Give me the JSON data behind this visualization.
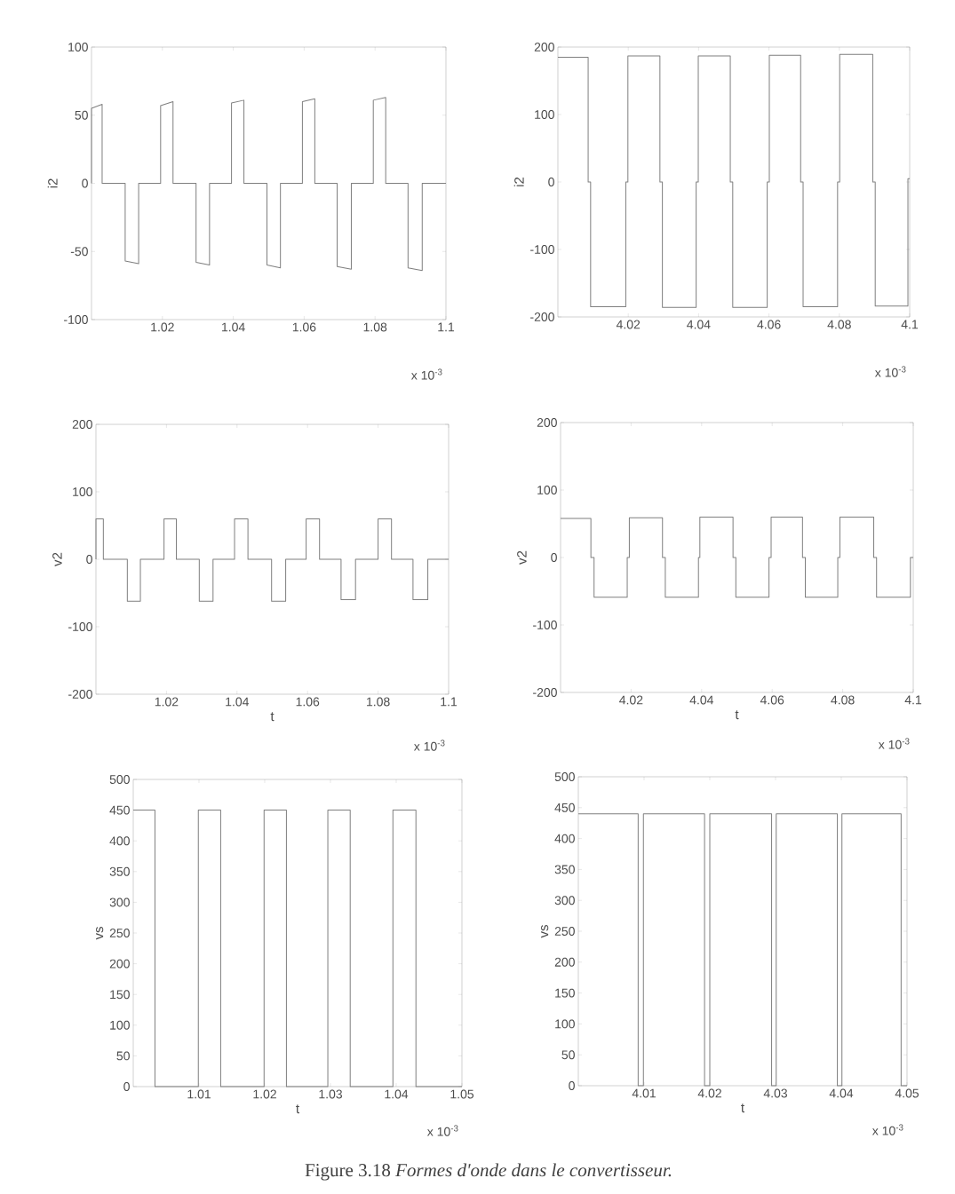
{
  "chart_data": [
    {
      "type": "line",
      "ylabel": "i2",
      "xlim": [
        1.0,
        1.1
      ],
      "ylim": [
        -100,
        100
      ],
      "xticks": [
        1.02,
        1.04,
        1.06,
        1.08,
        1.1
      ],
      "yticks": [
        -100,
        -50,
        0,
        50,
        100
      ],
      "annotations": [
        "x 10$^{-3}$"
      ],
      "series": [
        {
          "color": "#7f7f7f",
          "x": [
            1.0,
            1.0,
            1.003,
            1.003,
            1.0095,
            1.0095,
            1.0133,
            1.0133,
            1.0195,
            1.0195,
            1.023,
            1.023,
            1.0295,
            1.0295,
            1.0333,
            1.0333,
            1.0395,
            1.0395,
            1.043,
            1.043,
            1.0495,
            1.0495,
            1.0533,
            1.0533,
            1.0595,
            1.0595,
            1.063,
            1.063,
            1.0693,
            1.0693,
            1.0733,
            1.0733,
            1.0795,
            1.0795,
            1.083,
            1.083,
            1.0893,
            1.0893,
            1.0933,
            1.0933,
            1.1
          ],
          "values": [
            0,
            55,
            58,
            0,
            0,
            -57,
            -59,
            0,
            0,
            57,
            60,
            0,
            0,
            -58,
            -60,
            0,
            0,
            59,
            61,
            0,
            0,
            -60,
            -62,
            0,
            0,
            60,
            62,
            0,
            0,
            -61,
            -63,
            0,
            0,
            61,
            63,
            0,
            0,
            -62,
            -64,
            0,
            0
          ]
        }
      ]
    },
    {
      "type": "line",
      "ylabel": "i2",
      "xlim": [
        4.0,
        4.1
      ],
      "ylim": [
        -200,
        200
      ],
      "xticks": [
        4.02,
        4.04,
        4.06,
        4.08,
        4.1
      ],
      "yticks": [
        -200,
        -100,
        0,
        100,
        200
      ],
      "annotations": [
        "x 10$^{-3}$"
      ],
      "series": [
        {
          "color": "#7f7f7f",
          "x": [
            4.0,
            4.0086,
            4.0086,
            4.0093,
            4.0093,
            4.0193,
            4.0193,
            4.0199,
            4.0199,
            4.029,
            4.029,
            4.0297,
            4.0297,
            4.0393,
            4.0393,
            4.0399,
            4.0399,
            4.049,
            4.049,
            4.0497,
            4.0497,
            4.0595,
            4.0595,
            4.0601,
            4.0601,
            4.069,
            4.069,
            4.0697,
            4.0697,
            4.0795,
            4.0795,
            4.0801,
            4.0801,
            4.0895,
            4.0895,
            4.0902,
            4.0902,
            4.0995,
            4.0995,
            4.1
          ],
          "values": [
            185,
            185,
            0,
            0,
            -185,
            -185,
            0,
            0,
            187,
            187,
            0,
            0,
            -186,
            -186,
            0,
            0,
            187,
            187,
            0,
            0,
            -186,
            -186,
            0,
            0,
            188,
            188,
            0,
            0,
            -185,
            -185,
            0,
            0,
            189,
            189,
            0,
            0,
            -184,
            -184,
            5,
            5
          ]
        }
      ]
    },
    {
      "type": "line",
      "xlabel": "t",
      "ylabel": "v2",
      "xlim": [
        1.0,
        1.1
      ],
      "ylim": [
        -200,
        200
      ],
      "xticks": [
        1.02,
        1.04,
        1.06,
        1.08,
        1.1
      ],
      "yticks": [
        -200,
        -100,
        0,
        100,
        200
      ],
      "annotations": [
        "x 10$^{-3}$"
      ],
      "series": [
        {
          "color": "#7f7f7f",
          "x": [
            1.0,
            1.0,
            1.0021,
            1.0021,
            1.0089,
            1.0089,
            1.0126,
            1.0126,
            1.0193,
            1.0193,
            1.0228,
            1.0228,
            1.0293,
            1.0293,
            1.0332,
            1.0332,
            1.0393,
            1.0393,
            1.0431,
            1.0431,
            1.0498,
            1.0498,
            1.0538,
            1.0538,
            1.0596,
            1.0596,
            1.0634,
            1.0634,
            1.0695,
            1.0695,
            1.0736,
            1.0736,
            1.08,
            1.08,
            1.0838,
            1.0838,
            1.0899,
            1.0899,
            1.0941,
            1.0941,
            1.1
          ],
          "values": [
            0,
            60,
            60,
            0,
            0,
            -62,
            -62,
            0,
            0,
            60,
            60,
            0,
            0,
            -62,
            -62,
            0,
            0,
            60,
            60,
            0,
            0,
            -62,
            -62,
            0,
            0,
            60,
            60,
            0,
            0,
            -60,
            -60,
            0,
            0,
            60,
            60,
            0,
            0,
            -60,
            -60,
            0,
            0
          ]
        }
      ]
    },
    {
      "type": "line",
      "xlabel": "t",
      "ylabel": "v2",
      "xlim": [
        4.0,
        4.1
      ],
      "ylim": [
        -200,
        200
      ],
      "xticks": [
        4.02,
        4.04,
        4.06,
        4.08,
        4.1
      ],
      "yticks": [
        -200,
        -100,
        0,
        100,
        200
      ],
      "annotations": [
        "x 10$^{-3}$"
      ],
      "series": [
        {
          "color": "#7f7f7f",
          "x": [
            4.0,
            4.0086,
            4.0086,
            4.0095,
            4.0095,
            4.0189,
            4.0189,
            4.0195,
            4.0195,
            4.0289,
            4.0289,
            4.0297,
            4.0297,
            4.0391,
            4.0391,
            4.0395,
            4.0395,
            4.0489,
            4.0489,
            4.0497,
            4.0497,
            4.0591,
            4.0591,
            4.0597,
            4.0597,
            4.0686,
            4.0686,
            4.0694,
            4.0694,
            4.0786,
            4.0786,
            4.0792,
            4.0792,
            4.0888,
            4.0888,
            4.0896,
            4.0896,
            4.0992,
            4.0992,
            4.1
          ],
          "values": [
            58,
            58,
            0,
            0,
            -59,
            -59,
            0,
            0,
            59,
            59,
            0,
            0,
            -59,
            -59,
            0,
            0,
            60,
            60,
            0,
            0,
            -59,
            -59,
            0,
            0,
            60,
            60,
            0,
            0,
            -59,
            -59,
            0,
            0,
            60,
            60,
            0,
            0,
            -59,
            -59,
            0,
            0
          ]
        }
      ]
    },
    {
      "type": "line",
      "xlabel": "t",
      "ylabel": "vs",
      "xlim": [
        1.0,
        1.05
      ],
      "ylim": [
        0,
        500
      ],
      "xticks": [
        1.01,
        1.02,
        1.03,
        1.04,
        1.05
      ],
      "yticks": [
        0,
        50,
        100,
        150,
        200,
        250,
        300,
        350,
        400,
        450,
        500
      ],
      "annotations": [
        "x 10$^{-3}$"
      ],
      "series": [
        {
          "color": "#7f7f7f",
          "x": [
            1.0,
            1.0033,
            1.0033,
            1.0099,
            1.0099,
            1.0133,
            1.0133,
            1.0199,
            1.0199,
            1.0233,
            1.0233,
            1.0296,
            1.0296,
            1.033,
            1.033,
            1.0395,
            1.0395,
            1.043,
            1.043,
            1.05
          ],
          "values": [
            450,
            450,
            0,
            0,
            450,
            450,
            0,
            0,
            450,
            450,
            0,
            0,
            450,
            450,
            0,
            0,
            450,
            450,
            0,
            0
          ]
        }
      ]
    },
    {
      "type": "line",
      "xlabel": "t",
      "ylabel": "vs",
      "xlim": [
        4.0,
        4.05
      ],
      "ylim": [
        0,
        500
      ],
      "xticks": [
        4.01,
        4.02,
        4.03,
        4.04,
        4.05
      ],
      "yticks": [
        0,
        50,
        100,
        150,
        200,
        250,
        300,
        350,
        400,
        450,
        500
      ],
      "annotations": [
        "x 10$^{-3}$",
        "Figure 3.18 *Formes d'onde dans le convertisseur.*"
      ],
      "series": [
        {
          "color": "#7f7f7f",
          "x": [
            4.0,
            4.0091,
            4.0091,
            4.0099,
            4.0099,
            4.0192,
            4.0192,
            4.02,
            4.02,
            4.0294,
            4.0294,
            4.0301,
            4.0301,
            4.0394,
            4.0394,
            4.0401,
            4.0401,
            4.0491,
            4.0491,
            4.05
          ],
          "values": [
            440,
            440,
            0,
            0,
            440,
            440,
            0,
            0,
            440,
            440,
            0,
            0,
            440,
            440,
            0,
            0,
            440,
            440,
            0,
            0
          ]
        }
      ]
    }
  ]
}
